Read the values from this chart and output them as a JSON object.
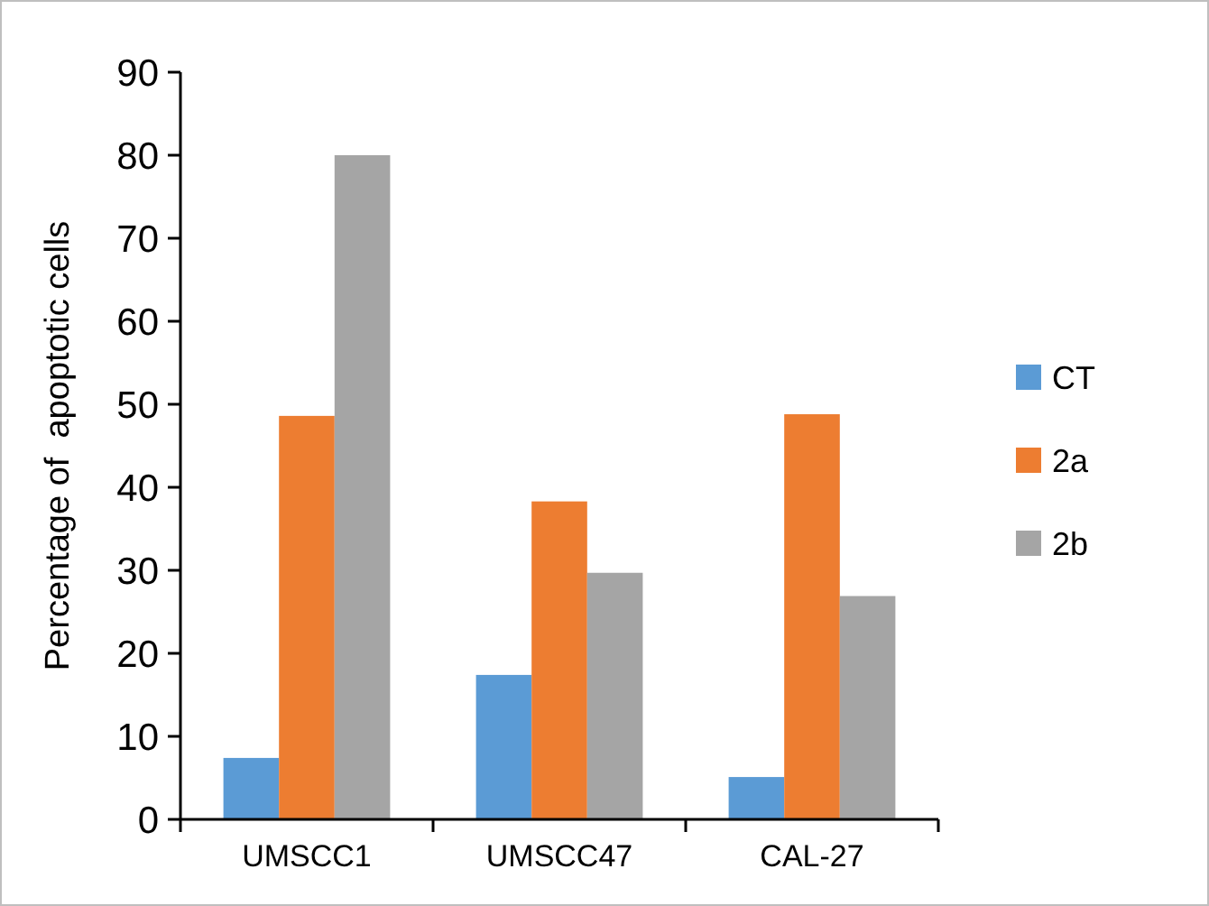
{
  "chart_data": {
    "type": "bar",
    "ylabel": "Percentage of  apoptotic cells",
    "categories": [
      "UMSCC1",
      "UMSCC47",
      "CAL-27"
    ],
    "series": [
      {
        "name": "CT",
        "color": "#5b9bd5",
        "values": [
          7.4,
          17.4,
          5.1
        ]
      },
      {
        "name": "2a",
        "color": "#ed7d31",
        "values": [
          48.6,
          38.3,
          48.8
        ]
      },
      {
        "name": "2b",
        "color": "#a5a5a5",
        "values": [
          80,
          29.7,
          26.9
        ]
      }
    ],
    "ylim": [
      0,
      90
    ],
    "yticks": [
      0,
      10,
      20,
      30,
      40,
      50,
      60,
      70,
      80,
      90
    ],
    "grid": false,
    "legend": "right"
  }
}
